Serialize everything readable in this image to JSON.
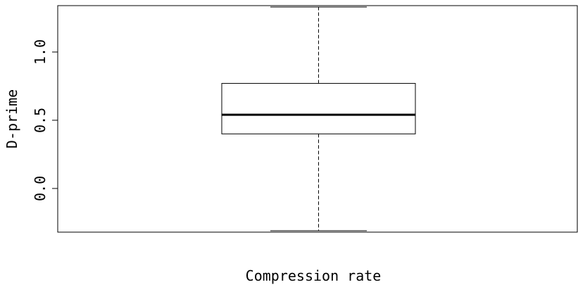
{
  "chart_data": {
    "type": "box",
    "title": "",
    "xlabel": "Compression rate",
    "ylabel": "D-prime",
    "ylim": [
      -0.32,
      1.34
    ],
    "yticks": [
      0.0,
      0.5,
      1.0
    ],
    "ytick_labels": [
      "0.0",
      "0.5",
      "1.0"
    ],
    "grid": false,
    "box": {
      "whisker_low": -0.31,
      "q1": 0.4,
      "median": 0.54,
      "q3": 0.77,
      "whisker_high": 1.33
    },
    "colors": {
      "stroke": "#000000",
      "background": "#ffffff"
    }
  }
}
